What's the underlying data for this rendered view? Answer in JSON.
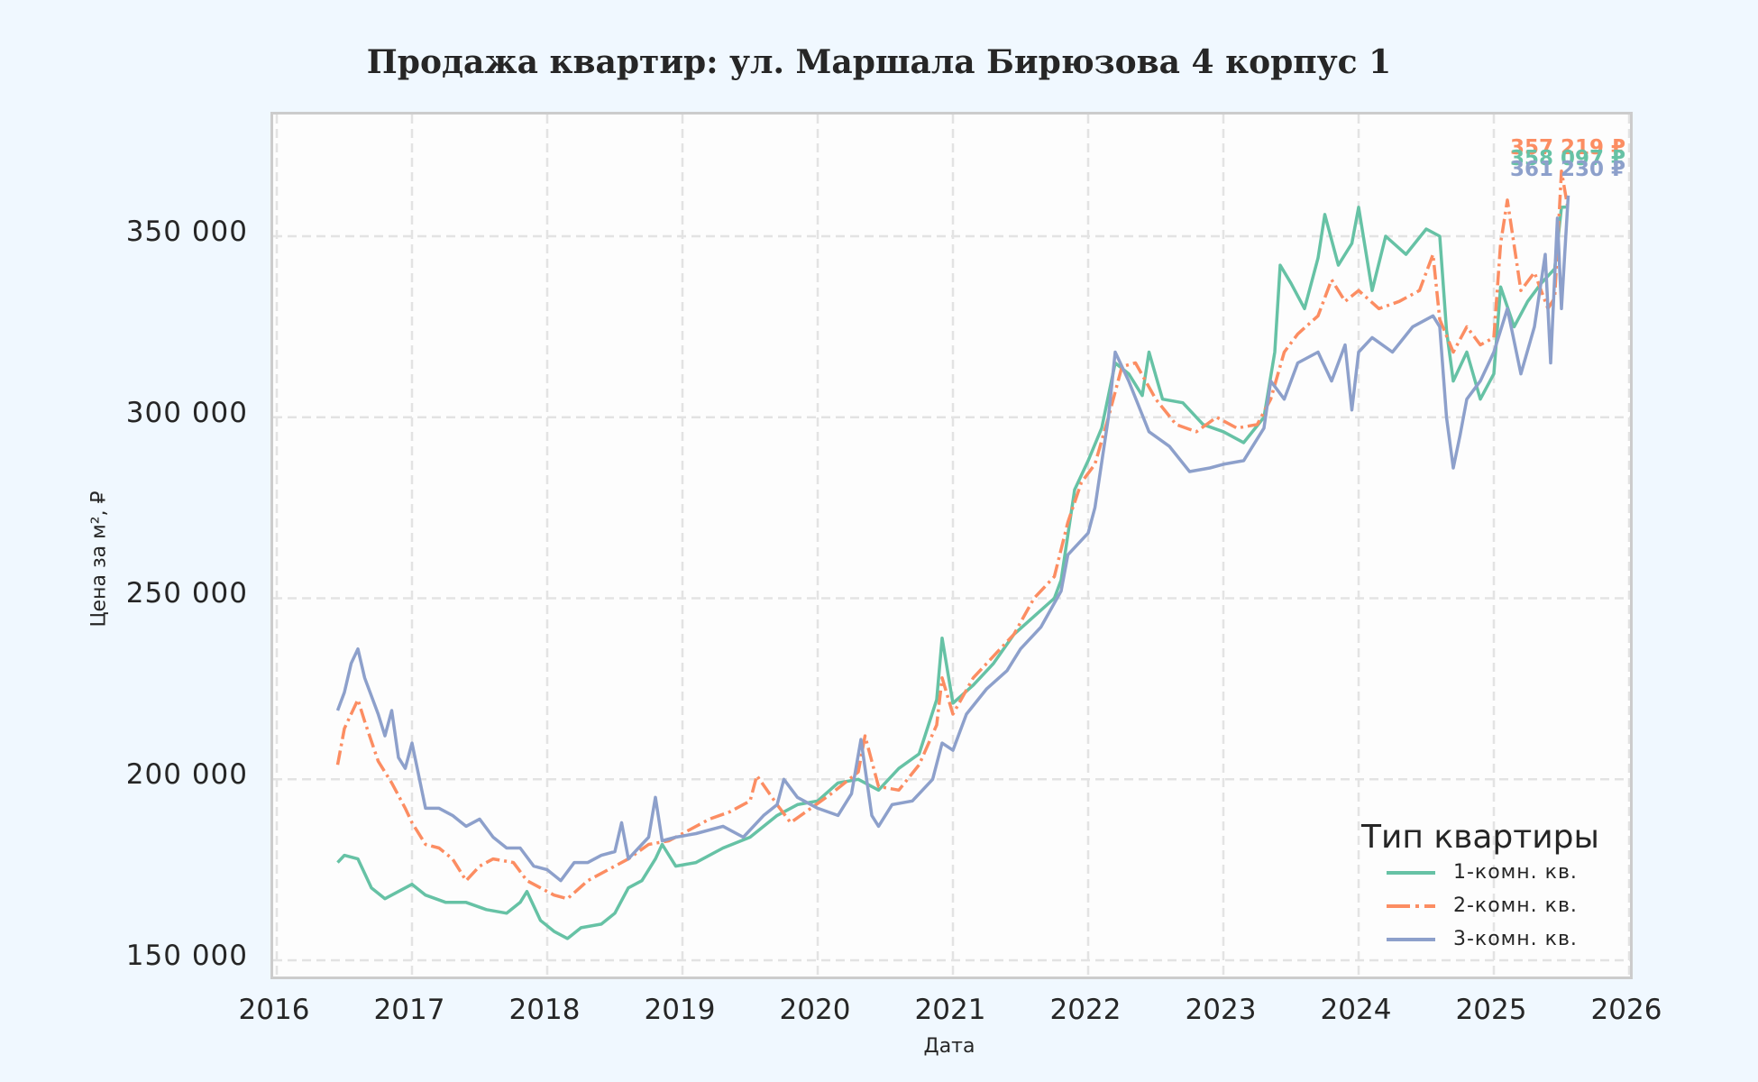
{
  "title": "Продажа квартир: ул. Маршала Бирюзова 4 корпус 1",
  "axes": {
    "xlabel": "Дата",
    "ylabel": "Цена за м², ₽",
    "yticks": [
      "150 000",
      "200 000",
      "250 000",
      "300 000",
      "350 000"
    ],
    "xticks": [
      "2016",
      "2017",
      "2018",
      "2019",
      "2020",
      "2021",
      "2022",
      "2023",
      "2024",
      "2025",
      "2026"
    ]
  },
  "legend": {
    "title": "Тип квартиры",
    "items": [
      {
        "label": "1-комн. кв.",
        "color": "#66c2a5",
        "style": "solid"
      },
      {
        "label": "2-комн. кв.",
        "color": "#fc8d62",
        "style": "dashdot"
      },
      {
        "label": "3-комн. кв.",
        "color": "#8da0cb",
        "style": "solid"
      }
    ]
  },
  "end_labels": [
    {
      "text": "357 219 ₽",
      "color": "#fc8d62"
    },
    {
      "text": "358 097 ₽",
      "color": "#66c2a5"
    },
    {
      "text": "361 230 ₽",
      "color": "#8da0cb"
    }
  ],
  "chart_data": {
    "type": "line",
    "title": "Продажа квартир: ул. Маршала Бирюзова 4 корпус 1",
    "xlabel": "Дата",
    "ylabel": "Цена за м², ₽",
    "xlim": [
      2016,
      2026
    ],
    "ylim": [
      143000,
      383000
    ],
    "grid": true,
    "legend_position": "lower right",
    "legend_title": "Тип квартиры",
    "series": [
      {
        "name": "1-комн. кв.",
        "color": "#66c2a5",
        "x": [
          2016.45,
          2016.5,
          2016.6,
          2016.7,
          2016.8,
          2016.9,
          2017.0,
          2017.1,
          2017.25,
          2017.4,
          2017.55,
          2017.7,
          2017.8,
          2017.85,
          2017.95,
          2018.05,
          2018.15,
          2018.25,
          2018.4,
          2018.5,
          2018.6,
          2018.7,
          2018.8,
          2018.85,
          2018.95,
          2019.1,
          2019.3,
          2019.5,
          2019.7,
          2019.85,
          2020.0,
          2020.15,
          2020.3,
          2020.45,
          2020.6,
          2020.75,
          2020.88,
          2020.92,
          2021.0,
          2021.15,
          2021.3,
          2021.45,
          2021.6,
          2021.75,
          2021.8,
          2021.9,
          2022.0,
          2022.1,
          2022.2,
          2022.3,
          2022.4,
          2022.45,
          2022.55,
          2022.7,
          2022.85,
          2023.0,
          2023.15,
          2023.3,
          2023.38,
          2023.42,
          2023.5,
          2023.6,
          2023.7,
          2023.75,
          2023.85,
          2023.95,
          2024.0,
          2024.1,
          2024.2,
          2024.35,
          2024.5,
          2024.6,
          2024.65,
          2024.7,
          2024.8,
          2024.9,
          2025.0,
          2025.05,
          2025.15,
          2025.25,
          2025.35,
          2025.45,
          2025.5,
          2025.55
        ],
        "values": [
          177000,
          179000,
          178000,
          170000,
          167000,
          169000,
          171000,
          168000,
          166000,
          166000,
          164000,
          163000,
          166000,
          169000,
          161000,
          158000,
          156000,
          159000,
          160000,
          163000,
          170000,
          172000,
          178000,
          182000,
          176000,
          177000,
          181000,
          184000,
          190000,
          193000,
          194000,
          199000,
          200000,
          197000,
          203000,
          207000,
          222000,
          239000,
          221000,
          226000,
          232000,
          240000,
          245000,
          250000,
          255000,
          280000,
          288000,
          297000,
          315000,
          312000,
          306000,
          318000,
          305000,
          304000,
          298000,
          296000,
          293000,
          300000,
          318000,
          342000,
          337000,
          330000,
          344000,
          356000,
          342000,
          348000,
          358000,
          335000,
          350000,
          345000,
          352000,
          350000,
          324000,
          310000,
          318000,
          305000,
          312000,
          336000,
          325000,
          332000,
          337000,
          341000,
          358000,
          358097
        ]
      },
      {
        "name": "2-комн. кв.",
        "color": "#fc8d62",
        "x": [
          2016.45,
          2016.5,
          2016.6,
          2016.65,
          2016.75,
          2016.85,
          2016.95,
          2017.0,
          2017.1,
          2017.2,
          2017.3,
          2017.4,
          2017.5,
          2017.6,
          2017.75,
          2017.85,
          2017.95,
          2018.05,
          2018.15,
          2018.3,
          2018.45,
          2018.6,
          2018.75,
          2018.9,
          2019.05,
          2019.2,
          2019.35,
          2019.5,
          2019.55,
          2019.7,
          2019.8,
          2019.95,
          2020.1,
          2020.2,
          2020.3,
          2020.35,
          2020.45,
          2020.6,
          2020.75,
          2020.88,
          2020.92,
          2021.0,
          2021.15,
          2021.3,
          2021.45,
          2021.6,
          2021.75,
          2021.85,
          2021.95,
          2022.05,
          2022.15,
          2022.25,
          2022.35,
          2022.5,
          2022.65,
          2022.8,
          2022.95,
          2023.1,
          2023.25,
          2023.35,
          2023.45,
          2023.55,
          2023.7,
          2023.8,
          2023.9,
          2024.0,
          2024.15,
          2024.3,
          2024.45,
          2024.55,
          2024.6,
          2024.7,
          2024.8,
          2024.9,
          2025.0,
          2025.05,
          2025.1,
          2025.2,
          2025.3,
          2025.4,
          2025.45,
          2025.5,
          2025.55
        ],
        "values": [
          204000,
          214000,
          222000,
          216000,
          205000,
          199000,
          192000,
          188000,
          182000,
          181000,
          178000,
          172000,
          176000,
          178000,
          177000,
          172000,
          170000,
          168000,
          167000,
          172000,
          175000,
          178000,
          182000,
          183000,
          186000,
          189000,
          191000,
          194000,
          201000,
          193000,
          188000,
          192000,
          196000,
          199000,
          202000,
          212000,
          198000,
          197000,
          204000,
          215000,
          228000,
          218000,
          228000,
          234000,
          240000,
          250000,
          256000,
          271000,
          282000,
          287000,
          300000,
          314000,
          315000,
          305000,
          298000,
          296000,
          300000,
          297000,
          298000,
          305000,
          318000,
          323000,
          328000,
          338000,
          332000,
          335000,
          330000,
          332000,
          335000,
          345000,
          327000,
          318000,
          325000,
          320000,
          322000,
          348000,
          360000,
          335000,
          340000,
          330000,
          333000,
          368000,
          357219
        ]
      },
      {
        "name": "3-комн. кв.",
        "color": "#8da0cb",
        "x": [
          2016.45,
          2016.5,
          2016.55,
          2016.6,
          2016.65,
          2016.75,
          2016.8,
          2016.85,
          2016.9,
          2016.95,
          2017.0,
          2017.1,
          2017.2,
          2017.3,
          2017.4,
          2017.5,
          2017.6,
          2017.7,
          2017.8,
          2017.9,
          2018.0,
          2018.1,
          2018.2,
          2018.3,
          2018.4,
          2018.5,
          2018.55,
          2018.6,
          2018.7,
          2018.75,
          2018.8,
          2018.85,
          2018.95,
          2019.1,
          2019.3,
          2019.45,
          2019.6,
          2019.7,
          2019.75,
          2019.85,
          2020.0,
          2020.15,
          2020.25,
          2020.32,
          2020.4,
          2020.45,
          2020.55,
          2020.7,
          2020.85,
          2020.92,
          2021.0,
          2021.1,
          2021.25,
          2021.4,
          2021.5,
          2021.65,
          2021.8,
          2021.85,
          2022.0,
          2022.05,
          2022.15,
          2022.2,
          2022.3,
          2022.45,
          2022.6,
          2022.75,
          2022.9,
          2023.0,
          2023.15,
          2023.3,
          2023.35,
          2023.45,
          2023.55,
          2023.7,
          2023.8,
          2023.9,
          2023.95,
          2024.0,
          2024.1,
          2024.25,
          2024.4,
          2024.55,
          2024.6,
          2024.65,
          2024.7,
          2024.75,
          2024.8,
          2024.9,
          2025.0,
          2025.1,
          2025.2,
          2025.3,
          2025.38,
          2025.42,
          2025.47,
          2025.5,
          2025.55
        ],
        "values": [
          219000,
          224000,
          232000,
          236000,
          228000,
          218000,
          212000,
          219000,
          206000,
          203000,
          210000,
          192000,
          192000,
          190000,
          187000,
          189000,
          184000,
          181000,
          181000,
          176000,
          175000,
          172000,
          177000,
          177000,
          179000,
          180000,
          188000,
          178000,
          182000,
          184000,
          195000,
          183000,
          184000,
          185000,
          187000,
          184000,
          190000,
          193000,
          200000,
          195000,
          192000,
          190000,
          196000,
          211000,
          190000,
          187000,
          193000,
          194000,
          200000,
          210000,
          208000,
          218000,
          225000,
          230000,
          236000,
          242000,
          252000,
          262000,
          268000,
          275000,
          300000,
          318000,
          310000,
          296000,
          292000,
          285000,
          286000,
          287000,
          288000,
          297000,
          310000,
          305000,
          315000,
          318000,
          310000,
          320000,
          302000,
          318000,
          322000,
          318000,
          325000,
          328000,
          325000,
          300000,
          286000,
          295000,
          305000,
          310000,
          318000,
          330000,
          312000,
          325000,
          345000,
          315000,
          355000,
          330000,
          361230
        ]
      }
    ]
  }
}
